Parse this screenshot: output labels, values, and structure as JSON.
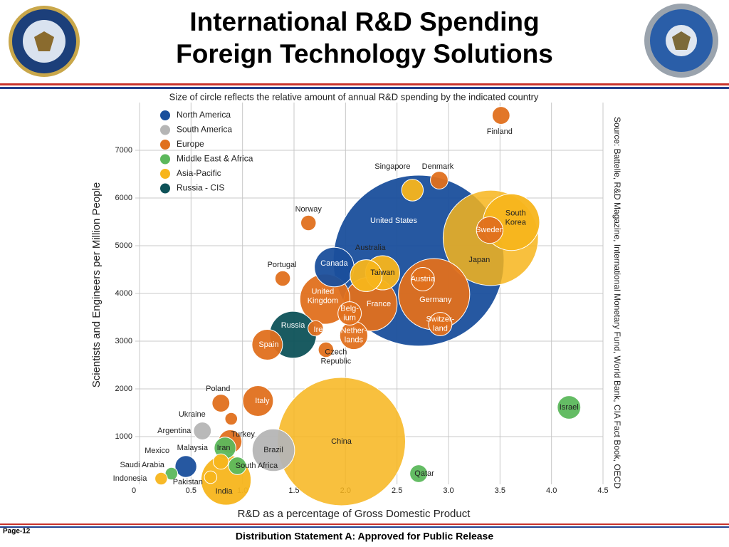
{
  "header": {
    "title_lines": [
      "International R&D Spending",
      "Foreign Technology Solutions"
    ]
  },
  "footer": {
    "page": "Page-12",
    "statement": "Distribution Statement A: Approved for Public Release"
  },
  "chart_data": {
    "type": "bubble",
    "title": "Size of circle reflects the relative amount of annual R&D spending by the indicated country",
    "x_label": "R&D as a percentage of Gross Domestic Product",
    "y_label": "Scientists and Engineers per Million People",
    "source": "Source:  Battelle, R&D Magazine, International Monetary Fund, World Bank, CIA Fact Book, OECD",
    "xlim": [
      0,
      4.5
    ],
    "xticks": [
      0,
      0.5,
      {
        "value": 1,
        "label": "1.0"
      },
      1.5,
      {
        "value": 2,
        "label": "2.0"
      },
      2.5,
      {
        "value": 3,
        "label": "3.0"
      },
      3.5,
      {
        "value": 4,
        "label": "4.0"
      },
      4.5
    ],
    "ylim": [
      0,
      8000
    ],
    "yticks": [
      1000,
      2000,
      3000,
      4000,
      5000,
      6000,
      7000
    ],
    "grid": true,
    "legend": "upper left",
    "series": [
      {
        "name": "North America",
        "color": "#1a4f9c",
        "labels": [
          [
            "United States"
          ],
          [
            "Canada"
          ],
          [
            "Mexico"
          ]
        ],
        "x": [
          2.71,
          1.89,
          0.45
        ],
        "values": [
          4687,
          4552,
          373
        ],
        "sizes": [
          373,
          20,
          6
        ]
      },
      {
        "name": "South America",
        "color": "#b5b5b5",
        "labels": [
          [
            "Brazil"
          ],
          [
            "Argentina"
          ]
        ],
        "x": [
          1.3,
          0.61
        ],
        "values": [
          716,
          1119
        ],
        "sizes": [
          23,
          4
        ]
      },
      {
        "name": "Europe",
        "color": "#e0701e",
        "labels": [
          [
            "Finland"
          ],
          [
            "Denmark"
          ],
          [
            "Norway"
          ],
          [
            "Sweden"
          ],
          [
            "Portugal"
          ],
          [
            "United",
            "Kingdom"
          ],
          [
            "France"
          ],
          [
            "Germany"
          ],
          [
            "Austria"
          ],
          [
            "Belg-",
            "ium"
          ],
          [
            "Switzer-",
            "land"
          ],
          [
            "Nether-",
            "lands"
          ],
          [
            "Ireland"
          ],
          [
            "Czech",
            "Republic"
          ],
          [
            "Spain"
          ],
          [
            "Italy"
          ],
          [
            "Poland"
          ],
          [
            "Ukraine"
          ],
          [
            "Turkey"
          ]
        ],
        "x": [
          3.51,
          2.91,
          1.64,
          3.4,
          1.39,
          1.8,
          2.24,
          2.86,
          2.75,
          2.04,
          2.92,
          2.08,
          1.71,
          1.81,
          1.24,
          1.15,
          0.79,
          0.89,
          0.88
        ],
        "values": [
          7731,
          6373,
          5478,
          5328,
          4313,
          3881,
          3776,
          3985,
          4299,
          3582,
          3358,
          3119,
          3269,
          2821,
          2925,
          1746,
          1701,
          1373,
          896
        ],
        "sizes": [
          4,
          4,
          3,
          9,
          3,
          32,
          37,
          65,
          7,
          7,
          7,
          10,
          3,
          3,
          12,
          12,
          4,
          2,
          7
        ]
      },
      {
        "name": "Middle East & Africa",
        "color": "#5cb85c",
        "labels": [
          [
            "Israel"
          ],
          [
            "Iran"
          ],
          [
            "South Africa"
          ],
          [
            "Saudi Arabia"
          ],
          [
            "Qatar"
          ]
        ],
        "x": [
          4.17,
          0.83,
          0.95,
          0.31,
          2.71
        ],
        "values": [
          1612,
          761,
          388,
          224,
          224
        ],
        "sizes": [
          7,
          6,
          4,
          2,
          4
        ]
      },
      {
        "name": "Asia-Pacific",
        "color": "#f7b51c",
        "labels": [
          [
            "China"
          ],
          [
            "Japan"
          ],
          [
            "South",
            "Korea"
          ],
          [
            "Singapore"
          ],
          [
            "Australia"
          ],
          [
            "Taiwan"
          ],
          [
            "India"
          ],
          [
            "Malaysia"
          ],
          [
            "Pakistan"
          ],
          [
            "Indonesia"
          ]
        ],
        "x": [
          1.96,
          3.41,
          3.61,
          2.65,
          2.2,
          2.36,
          0.84,
          0.79,
          0.69,
          0.21
        ],
        "values": [
          896,
          5164,
          5493,
          6164,
          4373,
          4433,
          90,
          478,
          149,
          119
        ],
        "sizes": [
          210,
          116,
          41,
          6,
          13,
          15,
          32,
          3,
          2,
          2
        ]
      },
      {
        "name": "Russia - CIS",
        "color": "#0e5258",
        "labels": [
          [
            "Russia"
          ]
        ],
        "x": [
          1.49
        ],
        "values": [
          3134
        ],
        "sizes": [
          28
        ]
      }
    ]
  }
}
